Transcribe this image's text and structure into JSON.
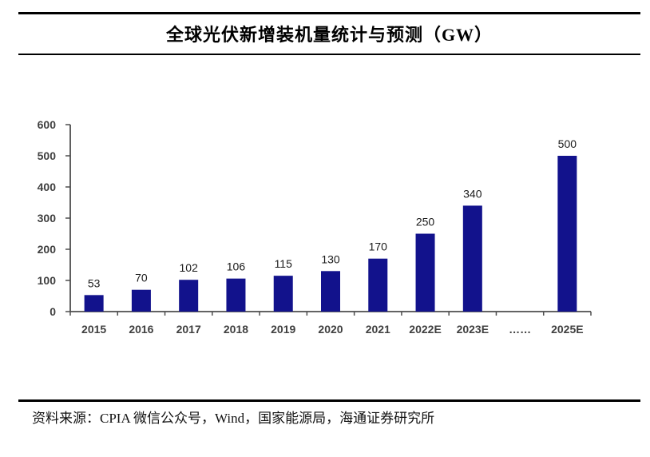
{
  "header": {
    "title": "全球光伏新增装机量统计与预测（GW）"
  },
  "footer": {
    "source": "资料来源：CPIA 微信公众号，Wind，国家能源局，海通证券研究所"
  },
  "chart_data": {
    "type": "bar",
    "title": "全球光伏新增装机量统计与预测（GW）",
    "unit": "GW",
    "categories": [
      "2015",
      "2016",
      "2017",
      "2018",
      "2019",
      "2020",
      "2021",
      "2022E",
      "2023E",
      "……",
      "2025E"
    ],
    "values": [
      53,
      70,
      102,
      106,
      115,
      130,
      170,
      250,
      340,
      null,
      500
    ],
    "xlabel": "",
    "ylabel": "",
    "ylim": [
      0,
      600
    ],
    "yticks": [
      0,
      100,
      200,
      300,
      400,
      500,
      600
    ],
    "grid": false,
    "legend": false,
    "bar_color": "#12128C",
    "value_label_color": "#1a1a1a",
    "tick_label_color": "#404040",
    "axis_color": "#4d4d4d",
    "rule_color": "#000000"
  }
}
